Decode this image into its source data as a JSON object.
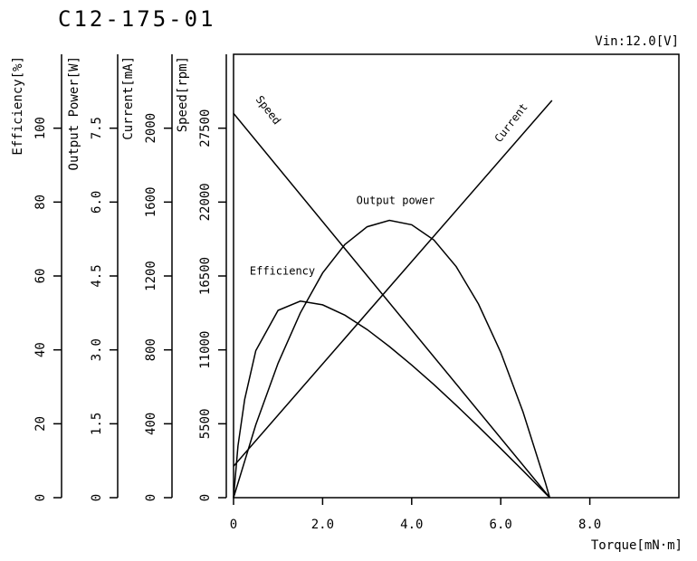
{
  "chart_data": {
    "type": "line",
    "title": "C12-175-01",
    "subtitle": "Vin:12.0[V]",
    "x_label": "Torque[mN·m]",
    "xlim": [
      0,
      10
    ],
    "xticks": [
      0,
      {
        "value": 2,
        "label": "2.0"
      },
      {
        "value": 4,
        "label": "4.0"
      },
      {
        "value": 6,
        "label": "6.0"
      },
      {
        "value": 8,
        "label": "8.0"
      }
    ],
    "y_axes": [
      {
        "label": "Efficiency[%]",
        "lim": [
          0,
          120
        ],
        "ticks": [
          0,
          20,
          40,
          60,
          80,
          100
        ]
      },
      {
        "label": "Output Power[W]",
        "lim": [
          0,
          9
        ],
        "ticks": [
          0,
          1.5,
          {
            "value": 3,
            "label": "3.0"
          },
          4.5,
          {
            "value": 6,
            "label": "6.0"
          },
          7.5
        ]
      },
      {
        "label": "Current[mA]",
        "lim": [
          0,
          2400
        ],
        "ticks": [
          0,
          400,
          800,
          1200,
          1600,
          2000
        ]
      },
      {
        "label": "Speed[rpm]",
        "lim": [
          0,
          33000
        ],
        "ticks": [
          0,
          5500,
          11000,
          16500,
          22000,
          27500
        ]
      }
    ],
    "series": [
      {
        "name": "Speed",
        "axis": 3,
        "color": "#000000",
        "x": [
          0,
          7.1
        ],
        "values": [
          28600,
          0
        ]
      },
      {
        "name": "Current",
        "axis": 2,
        "color": "#000000",
        "x": [
          0,
          7.15
        ],
        "values": [
          170,
          2150
        ]
      },
      {
        "name": "Output power",
        "axis": 1,
        "color": "#000000",
        "x": [
          0,
          0.5,
          1,
          1.5,
          2,
          2.5,
          3,
          3.5,
          4,
          4.5,
          5,
          5.5,
          6,
          6.5,
          7,
          7.1
        ],
        "values": [
          0,
          1.48,
          2.73,
          3.75,
          4.56,
          5.14,
          5.5,
          5.63,
          5.54,
          5.23,
          4.69,
          3.93,
          2.95,
          1.74,
          0.31,
          0
        ]
      },
      {
        "name": "Efficiency",
        "axis": 0,
        "color": "#000000",
        "x": [
          0,
          0.1,
          0.25,
          0.5,
          1,
          1.5,
          2,
          2.5,
          3,
          3.5,
          4,
          4.5,
          5,
          5.5,
          6,
          6.5,
          7,
          7.1
        ],
        "values": [
          0,
          14,
          26.6,
          39.8,
          50.7,
          53.2,
          52.2,
          49.4,
          45.5,
          40.9,
          35.9,
          30.6,
          25.0,
          19.2,
          13.3,
          7.3,
          1.2,
          0
        ]
      }
    ]
  }
}
